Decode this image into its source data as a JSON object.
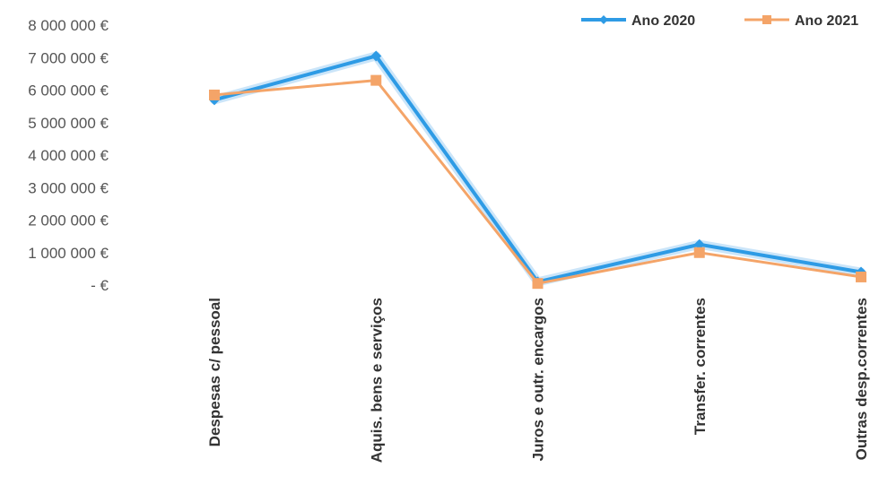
{
  "chart_data": {
    "type": "line",
    "categories": [
      "Despesas c/ pessoal",
      "Aquis. bens e serviços",
      "Juros e outr. encargos",
      "Transfer. correntes",
      "Outras desp.correntes"
    ],
    "series": [
      {
        "name": "Ano 2020",
        "values": [
          5700000,
          7050000,
          100000,
          1250000,
          400000
        ],
        "color": "#2e9be5",
        "marker": "diamond"
      },
      {
        "name": "Ano 2021",
        "values": [
          5850000,
          6300000,
          50000,
          1000000,
          250000
        ],
        "color": "#f4a468",
        "marker": "square"
      }
    ],
    "y_ticks": [
      {
        "value": 0,
        "label": "-   €"
      },
      {
        "value": 1000000,
        "label": "1 000 000 €"
      },
      {
        "value": 2000000,
        "label": "2 000 000 €"
      },
      {
        "value": 3000000,
        "label": "3 000 000 €"
      },
      {
        "value": 4000000,
        "label": "4 000 000 €"
      },
      {
        "value": 5000000,
        "label": "5 000 000 €"
      },
      {
        "value": 6000000,
        "label": "6 000 000 €"
      },
      {
        "value": 7000000,
        "label": "7 000 000 €"
      },
      {
        "value": 8000000,
        "label": "8 000 000 €"
      }
    ],
    "ylim": [
      0,
      8000000
    ],
    "grid": false,
    "legend": "top-right"
  }
}
